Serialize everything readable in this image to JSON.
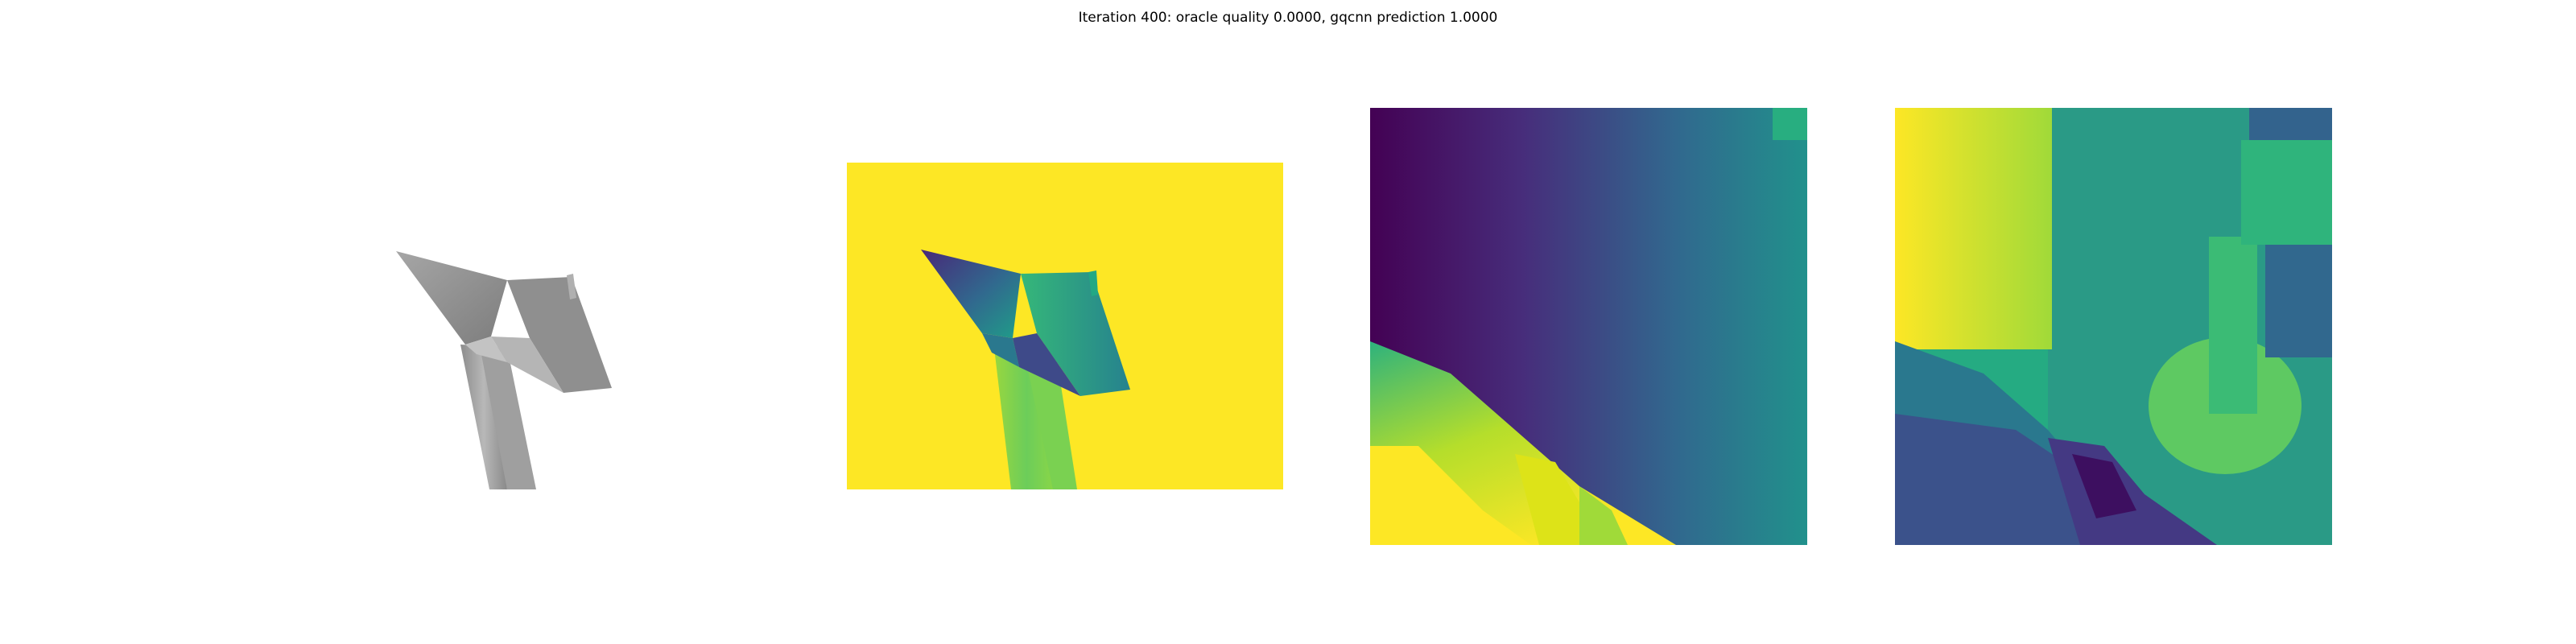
{
  "figure": {
    "title": "Iteration 400: oracle quality 0.0000, gqcnn prediction 1.0000"
  },
  "panels": [
    {
      "id": "render",
      "content": "rendered object",
      "colormap": "gray"
    },
    {
      "id": "depth",
      "content": "depth image",
      "colormap": "viridis"
    },
    {
      "id": "crop-1",
      "content": "depth crop",
      "colormap": "viridis"
    },
    {
      "id": "crop-2",
      "content": "depth crop",
      "colormap": "viridis"
    }
  ],
  "colors": {
    "viridis_yellow": "#fde725",
    "viridis_green": "#5ec962",
    "viridis_teal": "#21918c",
    "viridis_blue": "#3b528b",
    "viridis_purple": "#440154",
    "object_gray": "#9a9a9a"
  }
}
